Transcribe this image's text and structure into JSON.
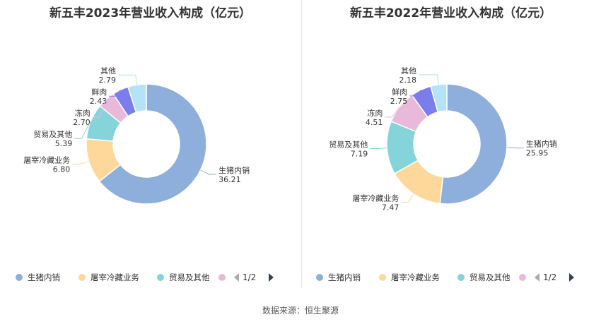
{
  "source": "数据来源：恒生聚源",
  "chart_data": [
    {
      "type": "pie",
      "title": "新五丰2023年营业收入构成（亿元）",
      "slices": [
        {
          "name": "生猪内销",
          "value": 36.21,
          "label": "36.21",
          "color": "#8eaedb"
        },
        {
          "name": "屠宰冷藏业务",
          "value": 6.8,
          "label": "6.80",
          "color": "#fdd89a"
        },
        {
          "name": "贸易及其他",
          "value": 5.39,
          "label": "5.39",
          "color": "#84d4d9"
        },
        {
          "name": "冻肉",
          "value": 2.7,
          "label": "2.70",
          "color": "#e8b9da"
        },
        {
          "name": "鲜肉",
          "value": 2.43,
          "label": "2.43",
          "color": "#7b7ded"
        },
        {
          "name": "其他",
          "value": 2.79,
          "label": "2.79",
          "color": "#b4e2f6"
        }
      ],
      "legend": {
        "position": "bottom",
        "items": [
          "生猪内销",
          "屠宰冷藏业务",
          "贸易及其他"
        ],
        "page": "1/2"
      }
    },
    {
      "type": "pie",
      "title": "新五丰2022年营业收入构成（亿元）",
      "slices": [
        {
          "name": "生猪内销",
          "value": 25.95,
          "label": "25.95",
          "color": "#8eaedb"
        },
        {
          "name": "屠宰冷藏业务",
          "value": 7.47,
          "label": "7.47",
          "color": "#fdd89a"
        },
        {
          "name": "贸易及其他",
          "value": 7.19,
          "label": "7.19",
          "color": "#84d4d9"
        },
        {
          "name": "冻肉",
          "value": 4.51,
          "label": "4.51",
          "color": "#e8b9da"
        },
        {
          "name": "鲜肉",
          "value": 2.75,
          "label": "2.75",
          "color": "#7b7ded"
        },
        {
          "name": "其他",
          "value": 2.18,
          "label": "2.18",
          "color": "#b4e2f6"
        }
      ],
      "legend": {
        "position": "bottom",
        "items": [
          "生猪内销",
          "屠宰冷藏业务",
          "贸易及其他"
        ],
        "page": "1/2"
      }
    }
  ]
}
